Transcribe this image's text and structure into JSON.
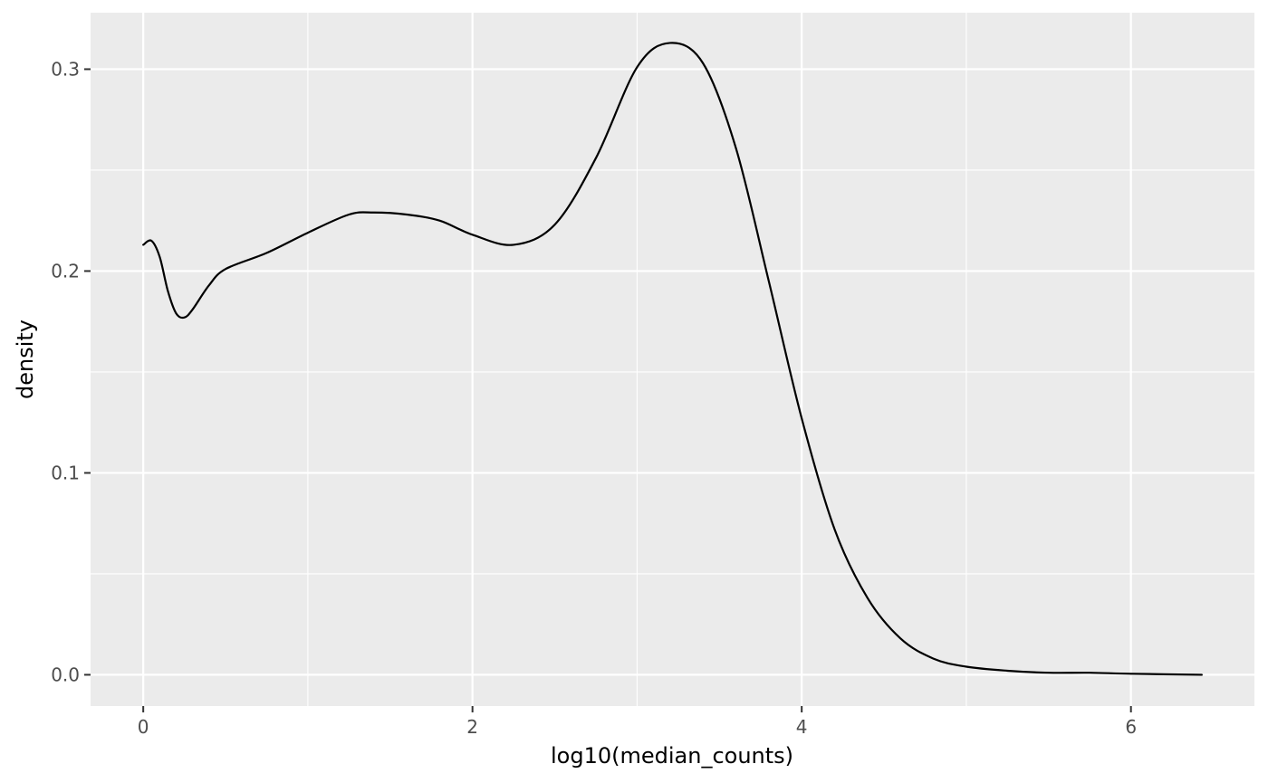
{
  "chart_data": {
    "type": "line",
    "title": "",
    "xlabel": "log10(median_counts)",
    "ylabel": "density",
    "xlim": [
      -0.32,
      6.75
    ],
    "ylim": [
      -0.0155,
      0.328
    ],
    "x_ticks": [
      0,
      2,
      4,
      6
    ],
    "x_tick_labels": [
      "0",
      "2",
      "4",
      "6"
    ],
    "y_ticks": [
      0.0,
      0.1,
      0.2,
      0.3
    ],
    "y_tick_labels": [
      "0.0",
      "0.1",
      "0.2",
      "0.3"
    ],
    "grid": true,
    "colors": {
      "panel": "#ebebeb",
      "grid": "#ffffff",
      "line": "#000000",
      "tick": "#4d4d4d"
    },
    "series": [
      {
        "x": [
          0.0,
          0.05,
          0.1,
          0.15,
          0.2,
          0.25,
          0.3,
          0.4,
          0.5,
          0.75,
          1.0,
          1.25,
          1.4,
          1.6,
          1.8,
          2.0,
          2.25,
          2.5,
          2.75,
          3.0,
          3.2,
          3.4,
          3.6,
          3.8,
          4.0,
          4.2,
          4.4,
          4.6,
          4.8,
          5.0,
          5.25,
          5.5,
          5.75,
          6.0,
          6.43
        ],
        "y": [
          0.213,
          0.215,
          0.207,
          0.19,
          0.179,
          0.177,
          0.181,
          0.193,
          0.201,
          0.209,
          0.219,
          0.228,
          0.229,
          0.228,
          0.225,
          0.218,
          0.213,
          0.223,
          0.256,
          0.301,
          0.313,
          0.303,
          0.261,
          0.195,
          0.127,
          0.072,
          0.038,
          0.018,
          0.008,
          0.004,
          0.002,
          0.001,
          0.001,
          0.0005,
          0.0
        ]
      }
    ]
  }
}
